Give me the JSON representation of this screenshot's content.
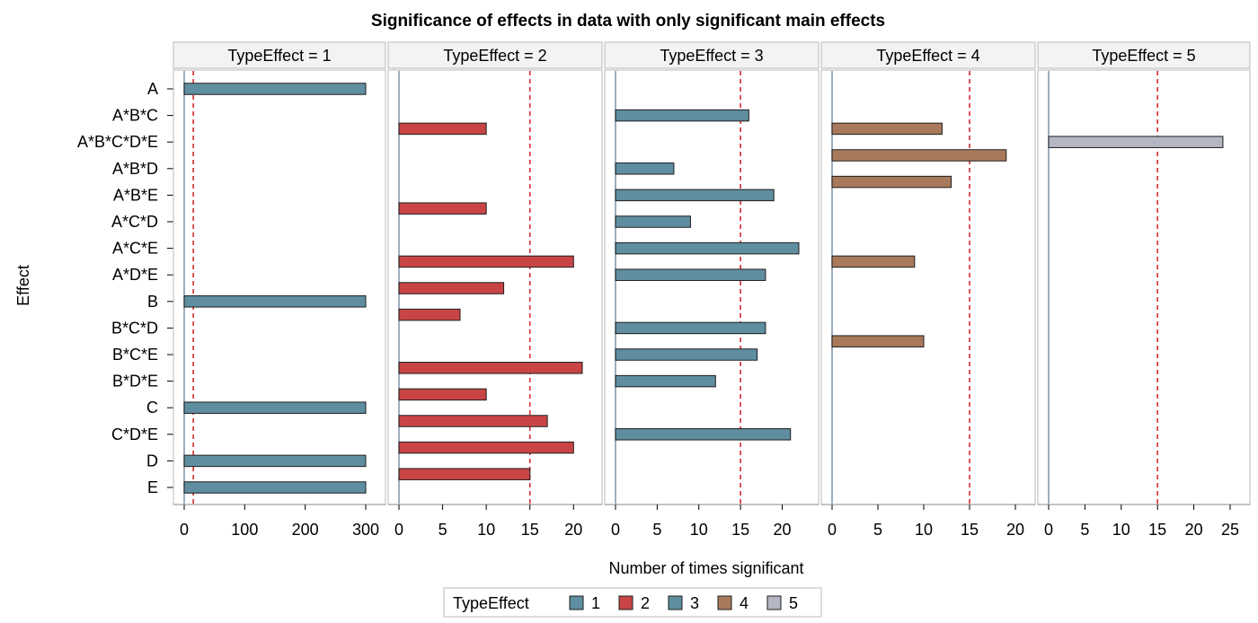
{
  "chart_data": {
    "type": "bar",
    "orientation": "horizontal",
    "title": "Significance of effects in data with only significant main effects",
    "xlabel": "Number of times significant",
    "ylabel": "Effect",
    "categories": [
      "A",
      "A*B*C",
      "A*B*C*D*E",
      "A*B*D",
      "A*B*E",
      "A*C*D",
      "A*C*E",
      "A*D*E",
      "B",
      "B*C*D",
      "B*C*E",
      "B*D*E",
      "C",
      "C*D*E",
      "D",
      "E"
    ],
    "panel_variable": "TypeEffect",
    "legend": {
      "title": "TypeEffect",
      "position": "bottom",
      "entries": [
        {
          "label": "1",
          "color": "#5f8ea0"
        },
        {
          "label": "2",
          "color": "#c94545"
        },
        {
          "label": "3",
          "color": "#5f8ea0"
        },
        {
          "label": "4",
          "color": "#a87a5b"
        },
        {
          "label": "5",
          "color": "#b4b7c3"
        }
      ]
    },
    "reference_line_color": "#d9292c",
    "panels": [
      {
        "label": "TypeEffect = 1",
        "xlim": [
          0,
          300
        ],
        "ticks": [
          0,
          100,
          200,
          300
        ],
        "reference_line": 15,
        "color": "#5f8ea0",
        "offset": 0,
        "values": {
          "A": 300,
          "B": 300,
          "C": 300,
          "D": 300,
          "E": 300
        }
      },
      {
        "label": "TypeEffect = 2",
        "xlim": [
          0,
          21
        ],
        "ticks": [
          0,
          5,
          10,
          15,
          20
        ],
        "reference_line": 15,
        "color": "#c94545",
        "offset": 0.5,
        "values": {
          "A*B*C": 10,
          "A*B*E": 10,
          "A*C*E": 20,
          "A*D*E": 12,
          "B": 7,
          "B*C*E": 21,
          "B*D*E": 10,
          "C": 17,
          "C*D*E": 20,
          "D": 15
        }
      },
      {
        "label": "TypeEffect = 3",
        "xlim": [
          0,
          22
        ],
        "ticks": [
          0,
          5,
          10,
          15,
          20
        ],
        "reference_line": 15,
        "color": "#5f8ea0",
        "offset": 0,
        "values": {
          "A*B*C": 16,
          "A*B*D": 7,
          "A*B*E": 19,
          "A*C*D": 9,
          "A*C*E": 22,
          "A*D*E": 18,
          "B*C*D": 18,
          "B*C*E": 17,
          "B*D*E": 12,
          "C*D*E": 21
        }
      },
      {
        "label": "TypeEffect = 4",
        "xlim": [
          0,
          20
        ],
        "ticks": [
          0,
          5,
          10,
          15,
          20
        ],
        "reference_line": 15,
        "color": "#a87a5b",
        "offset": -0.5,
        "values": {
          "A*B*C*D*E": 12,
          "A*B*D": 19,
          "A*B*E": 13,
          "A*D*E": 9,
          "B*C*E": 10
        }
      },
      {
        "label": "TypeEffect = 5",
        "xlim": [
          0,
          24
        ],
        "ticks": [
          0,
          5,
          10,
          15,
          20,
          25
        ],
        "reference_line": 15,
        "color": "#b4b7c3",
        "offset": 0,
        "values": {
          "A*B*C*D*E": 24
        }
      }
    ]
  }
}
